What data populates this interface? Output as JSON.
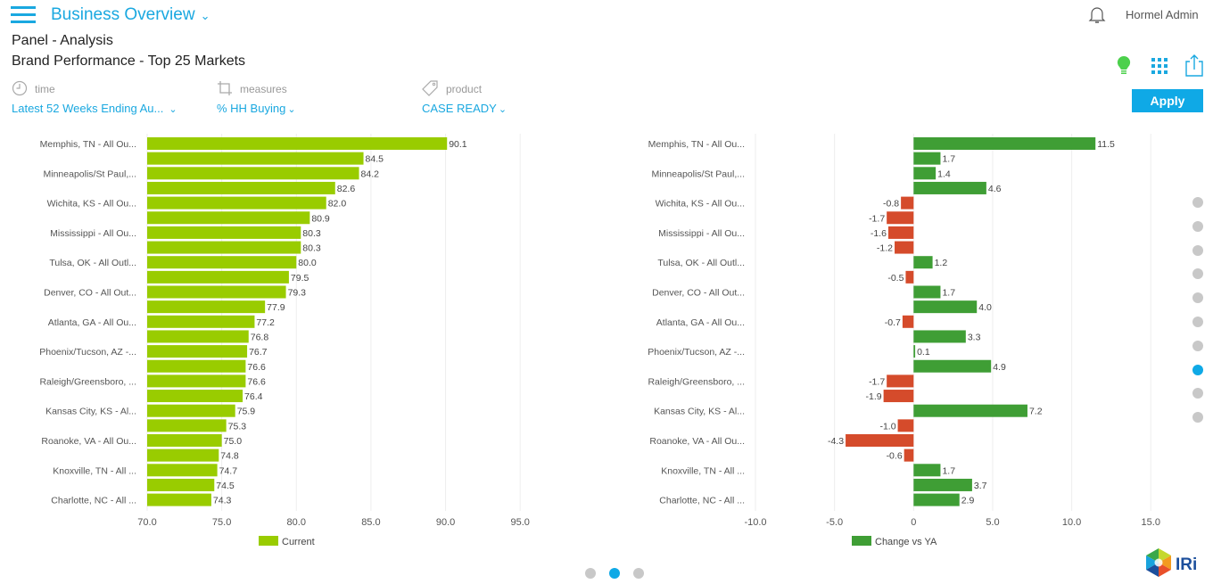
{
  "header": {
    "app_title": "Business Overview",
    "user_name": "Hormel Admin"
  },
  "page": {
    "panel_title": "Panel - Analysis",
    "report_title": "Brand Performance - Top 25 Markets"
  },
  "filters": [
    {
      "label": "time",
      "value": "Latest 52 Weeks Ending Au...",
      "icon": "clock-icon"
    },
    {
      "label": "measures",
      "value": "% HH Buying",
      "icon": "crop-icon"
    },
    {
      "label": "product",
      "value": "CASE READY",
      "icon": "tag-icon"
    }
  ],
  "toolbar": {
    "apply_label": "Apply",
    "icons": [
      "lightbulb-icon",
      "grid-icon",
      "share-icon"
    ]
  },
  "colors": {
    "accent": "#1aa8e0",
    "current_bar": "#99cc00",
    "positive_bar": "#3f9e35",
    "negative_bar": "#d54b2b"
  },
  "pagination": {
    "vertical_pages": 10,
    "vertical_active": 8,
    "horizontal_pages": 3,
    "horizontal_active": 2
  },
  "chart_data": [
    {
      "type": "bar",
      "orientation": "horizontal",
      "title": "",
      "xlabel": "",
      "ylabel": "",
      "xlim": [
        70.0,
        97.5
      ],
      "ticks": [
        "70.0",
        "75.0",
        "80.0",
        "85.0",
        "90.0",
        "95.0"
      ],
      "tick_values": [
        70,
        75,
        80,
        85,
        90,
        95
      ],
      "grid": true,
      "legend": "bottom",
      "categories": [
        "Memphis, TN - All Ou...",
        "",
        "Minneapolis/St Paul,...",
        "",
        "Wichita, KS - All Ou...",
        "",
        "Mississippi - All Ou...",
        "",
        "Tulsa, OK - All Outl...",
        "",
        "Denver, CO - All Out...",
        "",
        "Atlanta, GA - All Ou...",
        "",
        "Phoenix/Tucson, AZ -...",
        "",
        "Raleigh/Greensboro, ...",
        "",
        "Kansas City, KS - Al...",
        "",
        "Roanoke, VA - All Ou...",
        "",
        "Knoxville, TN - All ...",
        "",
        "Charlotte, NC - All ..."
      ],
      "series": [
        {
          "name": "Current",
          "values": [
            90.1,
            84.5,
            84.2,
            82.6,
            82.0,
            80.9,
            80.3,
            80.3,
            80.0,
            79.5,
            79.3,
            77.9,
            77.2,
            76.8,
            76.7,
            76.6,
            76.6,
            76.4,
            75.9,
            75.3,
            75.0,
            74.8,
            74.7,
            74.5,
            74.3
          ],
          "labels": [
            "90.1",
            "84.5",
            "84.2",
            "82.6",
            "82.0",
            "80.9",
            "80.3",
            "80.3",
            "80.0",
            "79.5",
            "79.3",
            "77.9",
            "77.2",
            "76.8",
            "76.7",
            "76.6",
            "76.6",
            "76.4",
            "75.9",
            "75.3",
            "75.0",
            "74.8",
            "74.7",
            "74.5",
            "74.3"
          ]
        }
      ]
    },
    {
      "type": "bar",
      "orientation": "horizontal",
      "title": "",
      "xlabel": "",
      "ylabel": "",
      "xlim": [
        -10.0,
        16.0
      ],
      "ticks": [
        "-10.0",
        "-5.0",
        "0",
        "5.0",
        "10.0",
        "15.0"
      ],
      "tick_values": [
        -10,
        -5,
        0,
        5,
        10,
        15
      ],
      "grid": true,
      "legend": "bottom",
      "categories": [
        "Memphis, TN - All Ou...",
        "",
        "Minneapolis/St Paul,...",
        "",
        "Wichita, KS - All Ou...",
        "",
        "Mississippi - All Ou...",
        "",
        "Tulsa, OK - All Outl...",
        "",
        "Denver, CO - All Out...",
        "",
        "Atlanta, GA - All Ou...",
        "",
        "Phoenix/Tucson, AZ -...",
        "",
        "Raleigh/Greensboro, ...",
        "",
        "Kansas City, KS - Al...",
        "",
        "Roanoke, VA - All Ou...",
        "",
        "Knoxville, TN - All ...",
        "",
        "Charlotte, NC - All ..."
      ],
      "series": [
        {
          "name": "Change vs YA",
          "values": [
            11.5,
            1.7,
            1.4,
            4.6,
            -0.8,
            -1.7,
            -1.6,
            -1.2,
            1.2,
            -0.5,
            1.7,
            4.0,
            -0.7,
            3.3,
            0.1,
            4.9,
            -1.7,
            -1.9,
            7.2,
            -1.0,
            -4.3,
            -0.6,
            1.7,
            3.7,
            2.9
          ],
          "labels": [
            "11.5",
            "1.7",
            "1.4",
            "4.6",
            "-0.8",
            "-1.7",
            "-1.6",
            "-1.2",
            "1.2",
            "-0.5",
            "1.7",
            "4.0",
            "-0.7",
            "3.3",
            "0.1",
            "4.9",
            "-1.7",
            "-1.9",
            "7.2",
            "-1.0",
            "-4.3",
            "-0.6",
            "1.7",
            "3.7",
            "2.9"
          ]
        }
      ]
    }
  ]
}
